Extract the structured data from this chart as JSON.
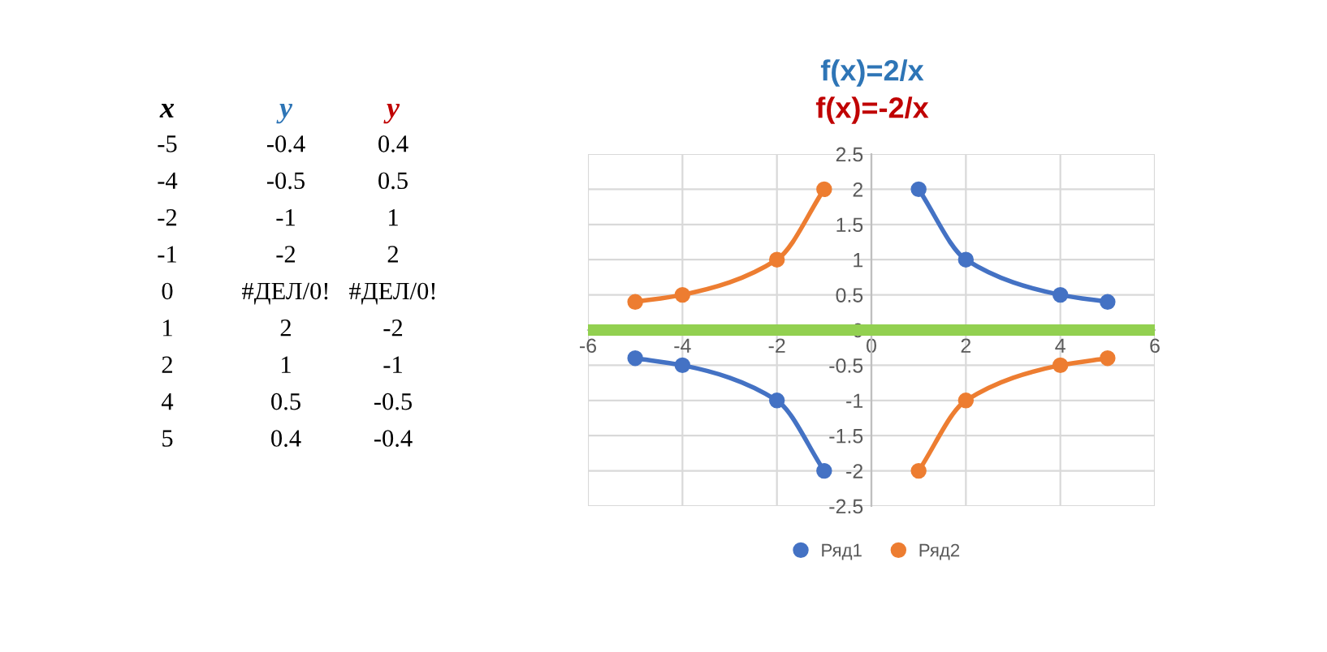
{
  "chart_data": {
    "type": "line",
    "title": "f(x)=2/x",
    "subtitle": "f(x)=-2/x",
    "annotations": [
      "x",
      "y",
      "y",
      "-5",
      "-0.4",
      "0.4",
      "-4",
      "-0.5",
      "0.5",
      "-2",
      "-1",
      "1",
      "-1",
      "-2",
      "2",
      "0",
      "#ДЕЛ/0!",
      "#ДЕЛ/0!",
      "1",
      "2",
      "-2",
      "2",
      "1",
      "-1",
      "4",
      "0.5",
      "-0.5",
      "5",
      "0.4",
      "-0.4"
    ],
    "x": [
      -5,
      -4,
      -2,
      -1,
      0,
      1,
      2,
      4,
      5
    ],
    "series": [
      {
        "name": "Ряд1",
        "color": "#4472c4",
        "values": [
          -0.4,
          -0.5,
          -1,
          -2,
          null,
          2,
          1,
          0.5,
          0.4
        ]
      },
      {
        "name": "Ряд2",
        "color": "#ed7d31",
        "values": [
          0.4,
          0.5,
          1,
          2,
          null,
          -2,
          -1,
          -0.5,
          -0.4
        ]
      }
    ],
    "xlim": [
      -6,
      6
    ],
    "xticks": [
      -6,
      -4,
      -2,
      0,
      2,
      4,
      6
    ],
    "ylim": [
      -2.5,
      2.5
    ],
    "yticks": [
      -2.5,
      -2,
      -1.5,
      -1,
      -0.5,
      0,
      0.5,
      1,
      1.5,
      2,
      2.5
    ],
    "ref_lines": [
      {
        "axis": "y",
        "value": 0,
        "color": "#92d050"
      }
    ],
    "grid": true,
    "legend": "bottom",
    "marker": "circle",
    "line_style": "solid"
  }
}
